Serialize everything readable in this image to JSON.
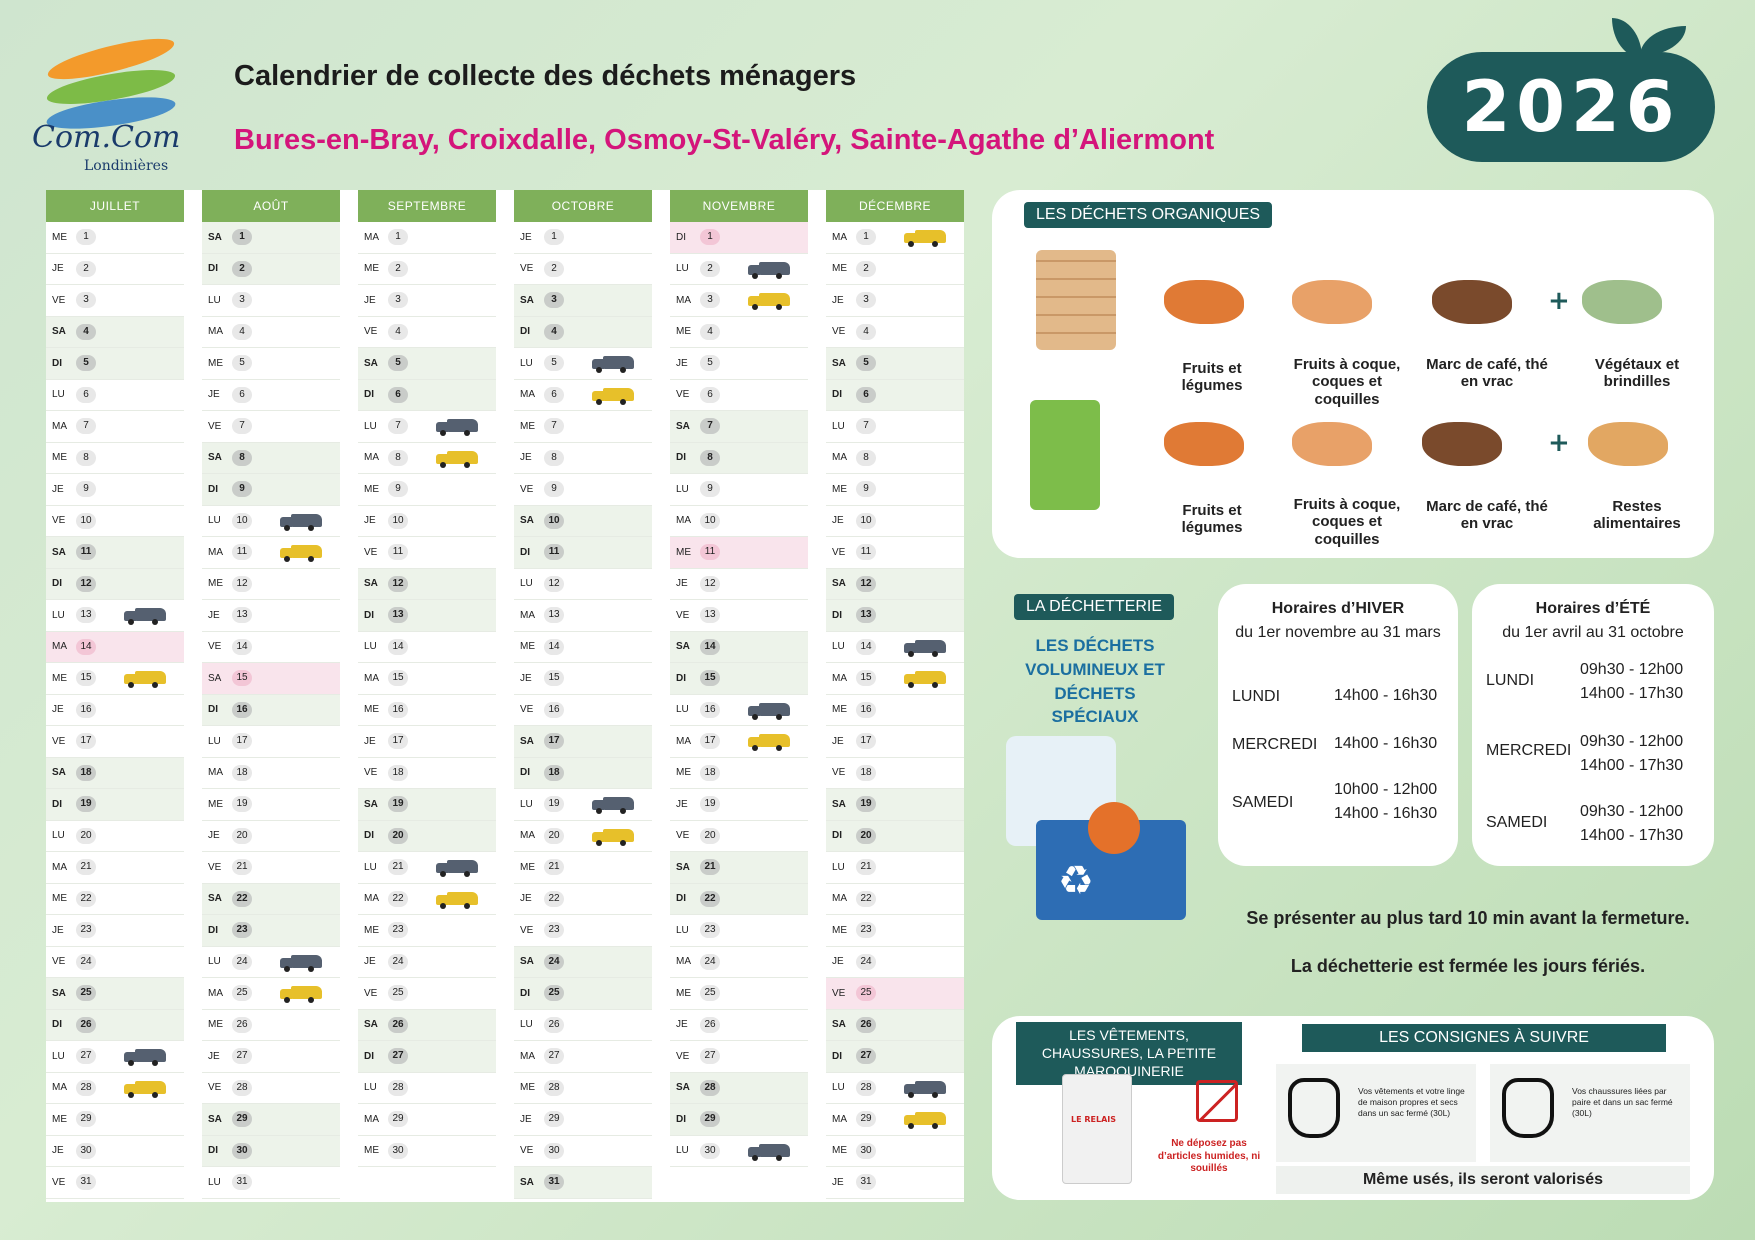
{
  "header": {
    "logo_name": "Com.Com",
    "logo_sub": "Londinières",
    "title": "Calendrier de collecte des déchets ménagers",
    "communes": "Bures-en-Bray, Croixdalle, Osmoy-St-Valéry, Sainte-Agathe d’Aliermont",
    "year": "2026"
  },
  "calendar": {
    "truck_colors": {
      "grey": "#556070",
      "yellow": "#e7c02a"
    },
    "months": [
      {
        "name": "JUILLET",
        "first_dow": 2,
        "days": 31,
        "holidays": [
          14
        ],
        "grey": [
          13,
          27
        ],
        "yellow": [
          15,
          28
        ]
      },
      {
        "name": "AOÛT",
        "first_dow": 5,
        "days": 31,
        "holidays": [
          15
        ],
        "grey": [
          10,
          24
        ],
        "yellow": [
          11,
          25
        ]
      },
      {
        "name": "SEPTEMBRE",
        "first_dow": 1,
        "days": 30,
        "holidays": [],
        "grey": [
          7,
          21
        ],
        "yellow": [
          8,
          22
        ]
      },
      {
        "name": "OCTOBRE",
        "first_dow": 3,
        "days": 31,
        "holidays": [],
        "grey": [
          5,
          19
        ],
        "yellow": [
          6,
          20
        ]
      },
      {
        "name": "NOVEMBRE",
        "first_dow": 6,
        "days": 30,
        "holidays": [
          1,
          11
        ],
        "grey": [
          2,
          16,
          30
        ],
        "yellow": [
          3,
          17
        ]
      },
      {
        "name": "DÉCEMBRE",
        "first_dow": 1,
        "days": 31,
        "holidays": [
          25
        ],
        "grey": [
          14,
          28
        ],
        "yellow": [
          1,
          15,
          29
        ]
      }
    ],
    "day_abbr": [
      "LU",
      "MA",
      "ME",
      "JE",
      "VE",
      "SA",
      "DI"
    ]
  },
  "organic": {
    "tag": "LES DÉCHETS ORGANIQUES",
    "row1": [
      "Fruits et légumes",
      "Fruits à coque, coques et coquilles",
      "Marc de café, thé en vrac",
      "Végétaux et brindilles"
    ],
    "row2": [
      "Fruits et légumes",
      "Fruits à coque, coques et coquilles",
      "Marc de café, thé en vrac",
      "Restes alimentaires"
    ],
    "plus": "+"
  },
  "decheterie": {
    "tag": "LA DÉCHETTERIE",
    "subtitle": "LES DÉCHETS VOLUMINEUX ET DÉCHETS SPÉCIAUX",
    "recycle_symbol": "♻",
    "winter": {
      "title": "Horaires d’HIVER",
      "period": "du 1er novembre au 31 mars",
      "lundi": "LUNDI",
      "lundi_h": "14h00 - 16h30",
      "mercredi": "MERCREDI",
      "mercredi_h": "14h00 - 16h30",
      "samedi": "SAMEDI",
      "samedi_h1": "10h00 - 12h00",
      "samedi_h2": "14h00 - 16h30"
    },
    "summer": {
      "title": "Horaires d’ÉTÉ",
      "period": "du 1er avril au 31 octobre",
      "lundi": "LUNDI",
      "lundi_h1": "09h30 - 12h00",
      "lundi_h2": "14h00 - 17h30",
      "mercredi": "MERCREDI",
      "mercredi_h1": "09h30 - 12h00",
      "mercredi_h2": "14h00 - 17h30",
      "samedi": "SAMEDI",
      "samedi_h1": "09h30 - 12h00",
      "samedi_h2": "14h00 - 17h30"
    },
    "note1": "Se présenter au plus tard 10 min avant la fermeture.",
    "note2": "La déchetterie est fermée les jours fériés."
  },
  "clothes": {
    "tag": "LES VÊTEMENTS, CHAUSSURES, LA PETITE MAROQUINERIE",
    "relais": "LE RELAIS",
    "warning": "Ne déposez pas d’articles humides, ni souillés",
    "consignes_tag": "LES CONSIGNES À SUIVRE",
    "cons1": "Vos vêtements et votre linge de maison propres et secs dans un sac fermé (30L)",
    "cons2": "Vos chaussures liées par paire et dans un sac fermé (30L)",
    "reused": "Même usés, ils seront valorisés"
  }
}
